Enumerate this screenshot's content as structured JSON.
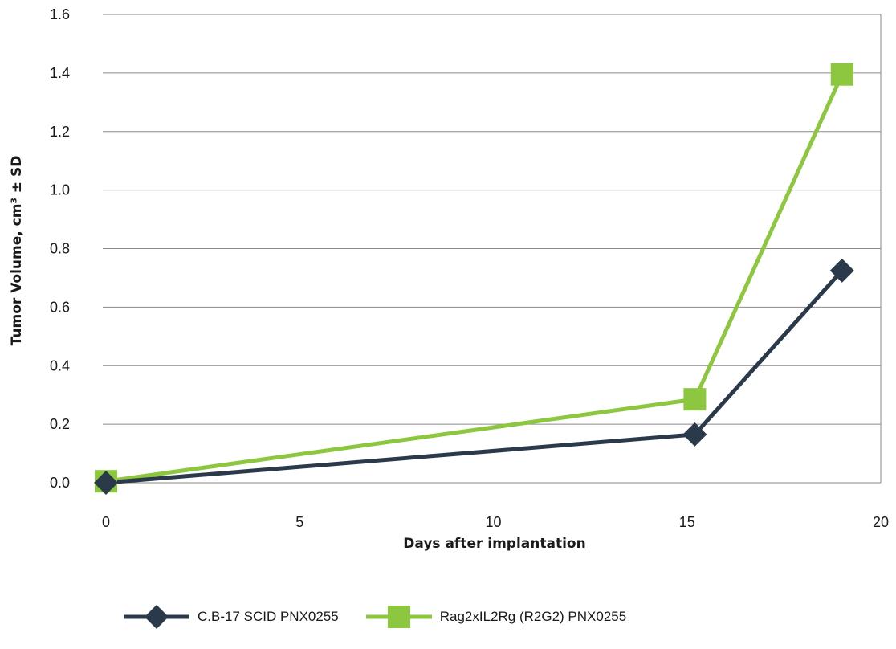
{
  "chart_data": {
    "type": "line",
    "title": "",
    "xlabel": "Days after implantation",
    "ylabel": "Tumor Volume, cm³ ± SD",
    "xlim": [
      0,
      20
    ],
    "ylim": [
      0,
      1.6
    ],
    "xticks": [
      0,
      5,
      10,
      15,
      20
    ],
    "yticks": [
      "0.0",
      "0.2",
      "0.4",
      "0.6",
      "0.8",
      "1.0",
      "1.2",
      "1.4",
      "1.6"
    ],
    "grid": "horizontal",
    "legend_position": "bottom",
    "series": [
      {
        "name": "C.B-17 SCID PNX0255",
        "color": "#2b3a4a",
        "marker": "diamond",
        "points": [
          [
            0,
            0.0
          ],
          [
            15.2,
            0.165
          ],
          [
            19,
            0.725
          ]
        ]
      },
      {
        "name": "Rag2xIL2Rg (R2G2) PNX0255",
        "color": "#8dc63f",
        "marker": "square",
        "points": [
          [
            0,
            0.005
          ],
          [
            15.2,
            0.285
          ],
          [
            19,
            1.395
          ]
        ]
      }
    ]
  }
}
